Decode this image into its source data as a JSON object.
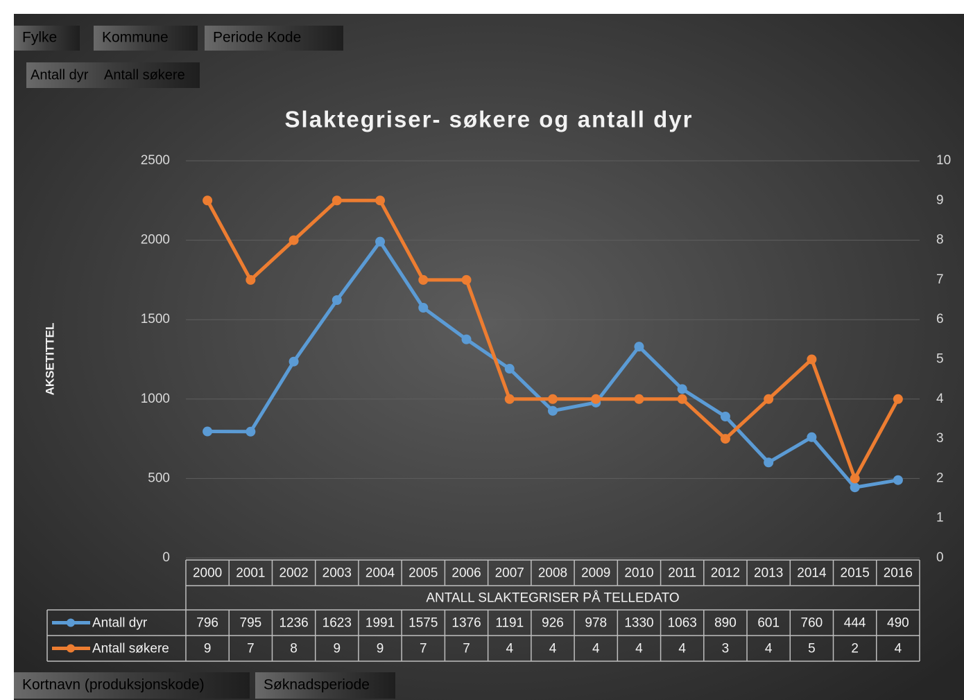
{
  "filter_buttons": [
    "Fylke",
    "Kommune",
    "Periode Kode"
  ],
  "value_buttons": [
    "Antall dyr",
    "Antall søkere"
  ],
  "axis_buttons": [
    "Kortnavn (produksjonskode)",
    "Søknadsperiode"
  ],
  "chart_data": {
    "type": "line",
    "title": "Slaktegriser- søkere og antall dyr",
    "y_label": "AKSETITTEL",
    "x_label": "ANTALL SLAKTEGRISER PÅ TELLEDATO",
    "categories": [
      "2000",
      "2001",
      "2002",
      "2003",
      "2004",
      "2005",
      "2006",
      "2007",
      "2008",
      "2009",
      "2010",
      "2011",
      "2012",
      "2013",
      "2014",
      "2015",
      "2016"
    ],
    "series": [
      {
        "name": "Antall dyr",
        "color": "#5b9bd5",
        "values": [
          796,
          795,
          1236,
          1623,
          1991,
          1575,
          1376,
          1191,
          926,
          978,
          1330,
          1063,
          890,
          601,
          760,
          444,
          490
        ]
      },
      {
        "name": "Antall søkere",
        "color": "#ed7d31",
        "axis": "y2",
        "values": [
          9,
          7,
          8,
          9,
          9,
          7,
          7,
          4,
          4,
          4,
          4,
          4,
          3,
          4,
          5,
          2,
          4
        ]
      }
    ],
    "ylim": [
      0,
      2500
    ],
    "yticks": [
      0,
      500,
      1000,
      1500,
      2000,
      2500
    ],
    "y2lim": [
      0,
      10
    ],
    "y2ticks": [
      0,
      1,
      2,
      3,
      4,
      5,
      6,
      7,
      8,
      9,
      10
    ],
    "grid": true,
    "data_table": true
  }
}
